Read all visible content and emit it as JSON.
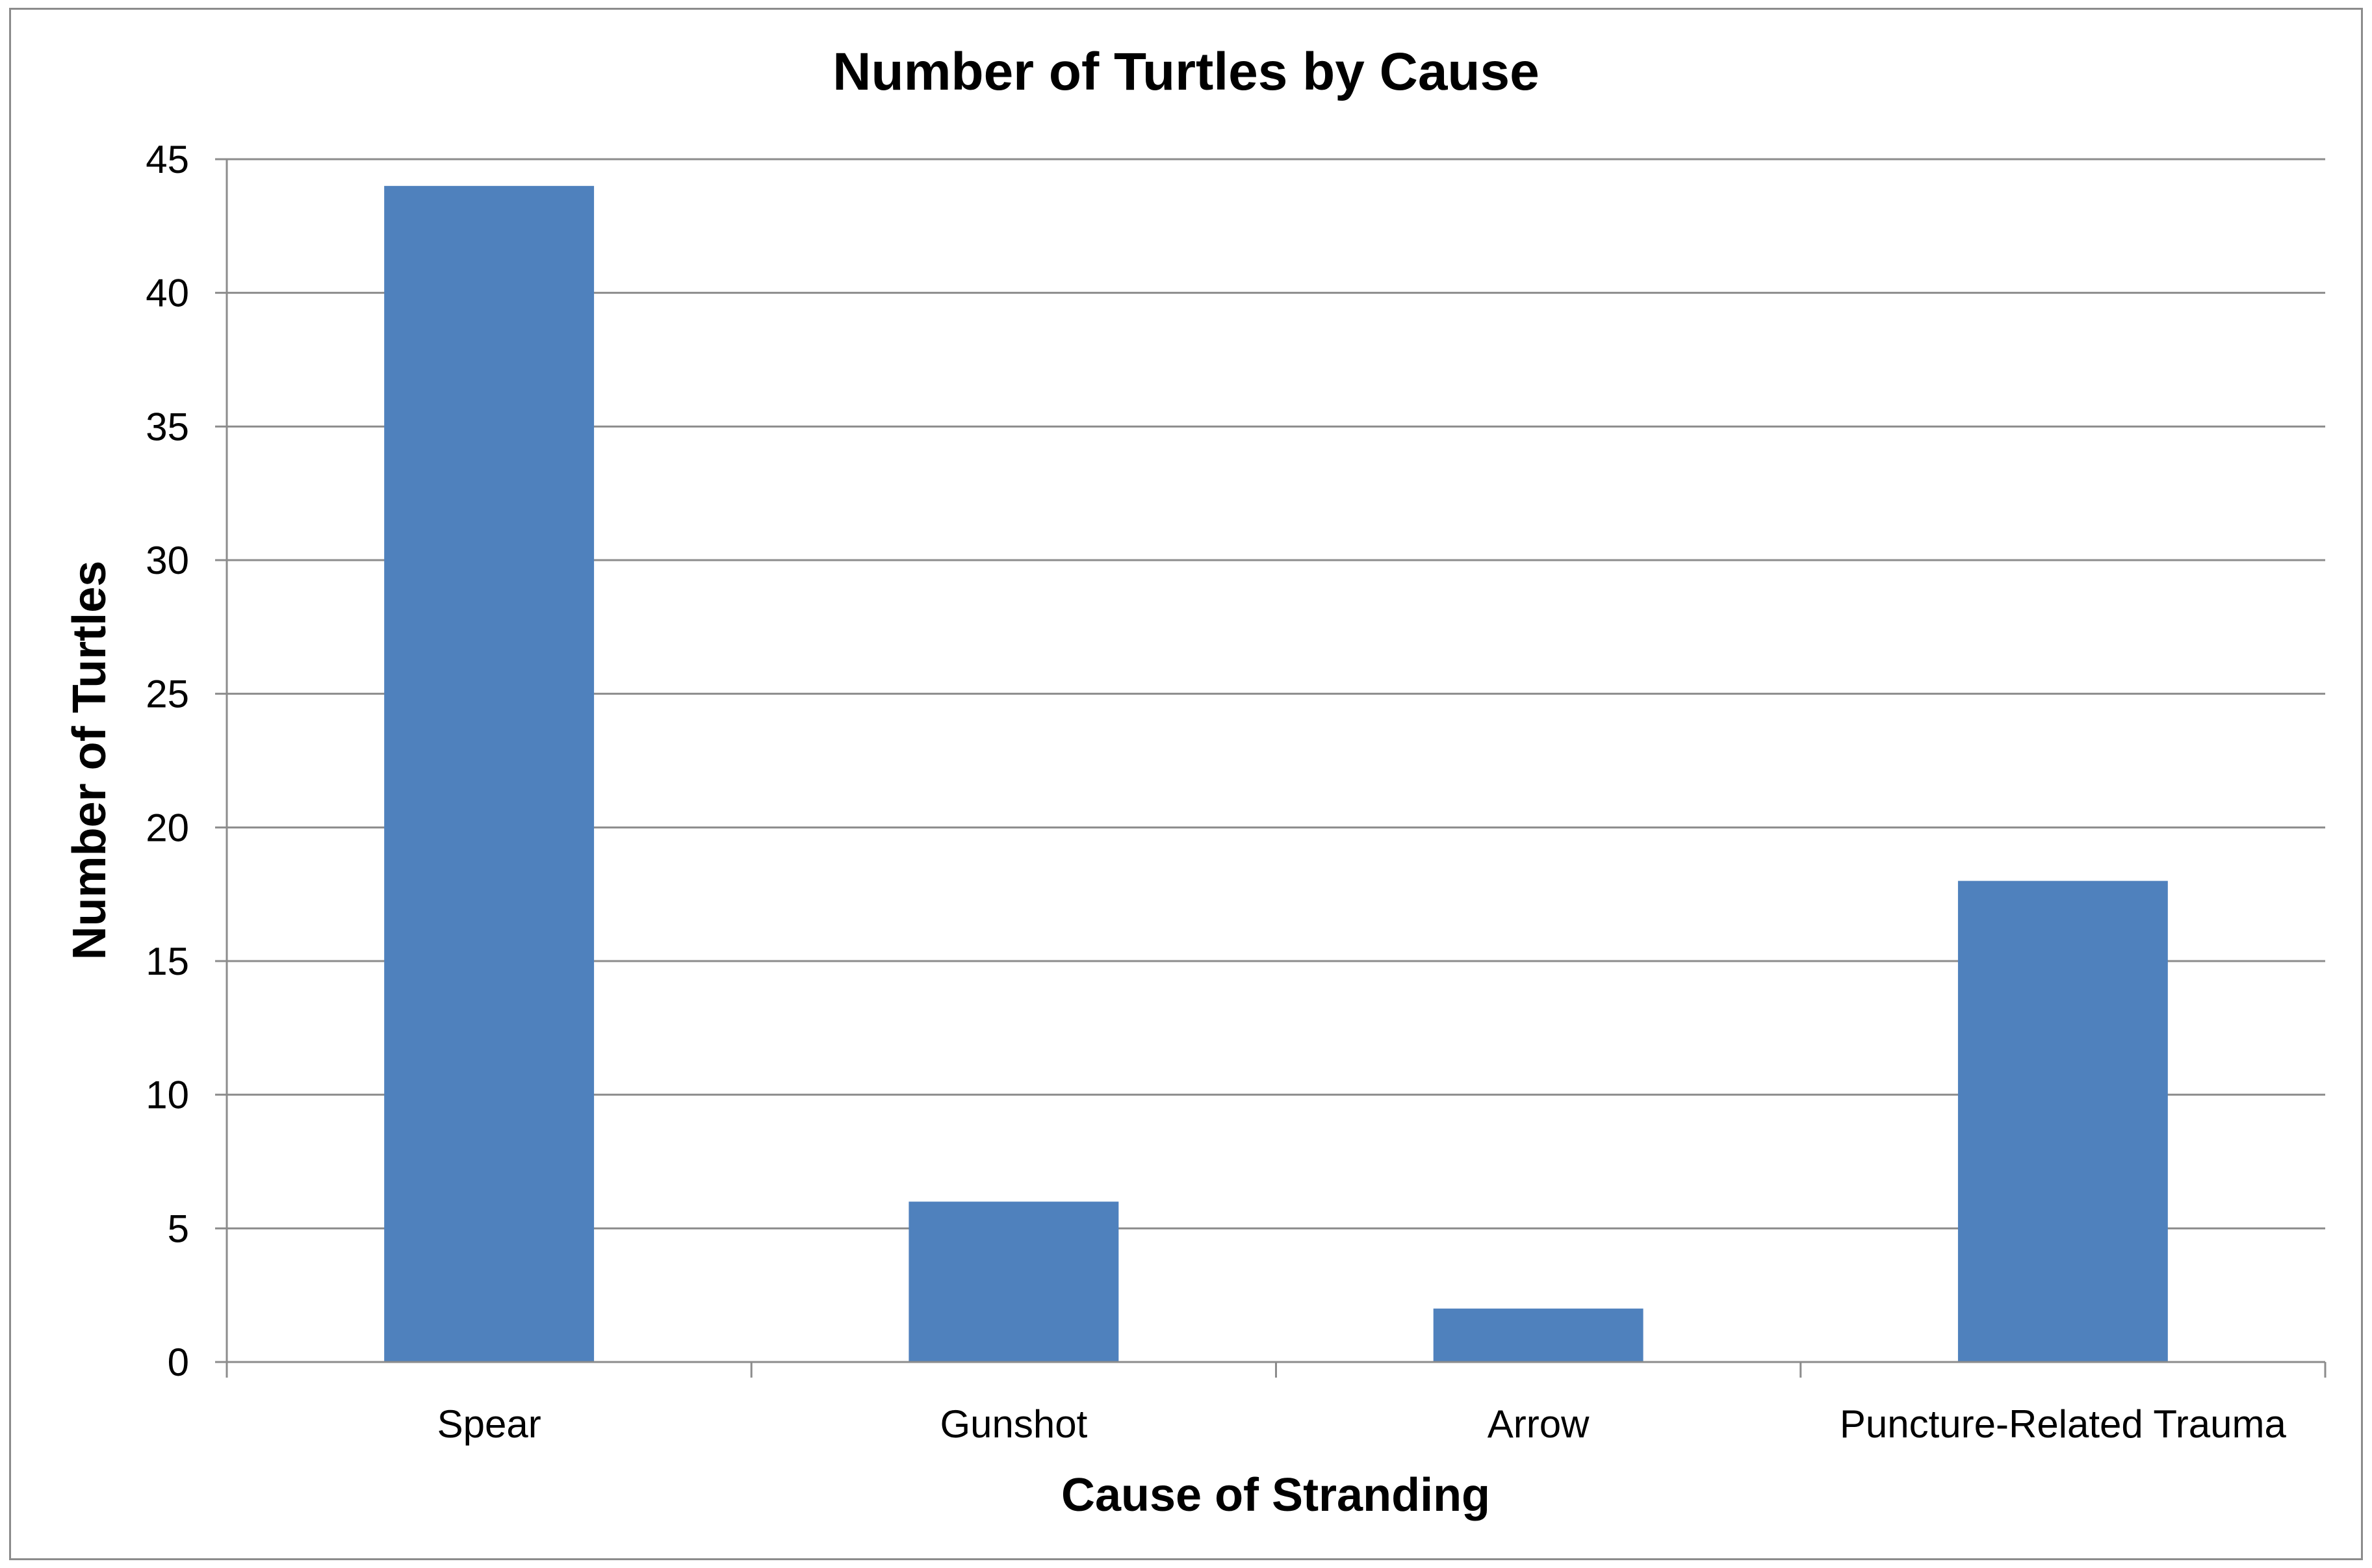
{
  "chart_data": {
    "type": "bar",
    "title": "Number of Turtles by Cause",
    "xlabel": "Cause of Stranding",
    "ylabel": "Number of Turtles",
    "categories": [
      "Spear",
      "Gunshot",
      "Arrow",
      "Puncture-Related Trauma"
    ],
    "series": [
      {
        "values": [
          44,
          6,
          2,
          18
        ]
      }
    ],
    "ylim": [
      0,
      45
    ],
    "yticks": [
      0,
      5,
      10,
      15,
      20,
      25,
      30,
      35,
      40,
      45
    ],
    "ytick_labels": [
      "0",
      "5",
      "10",
      "15",
      "20",
      "25",
      "30",
      "35",
      "40",
      "45"
    ],
    "grid": true,
    "legend": "none",
    "colors": {
      "bar": "#4f81bd",
      "grid": "#8c8c8c",
      "axis": "#8c8c8c"
    }
  }
}
